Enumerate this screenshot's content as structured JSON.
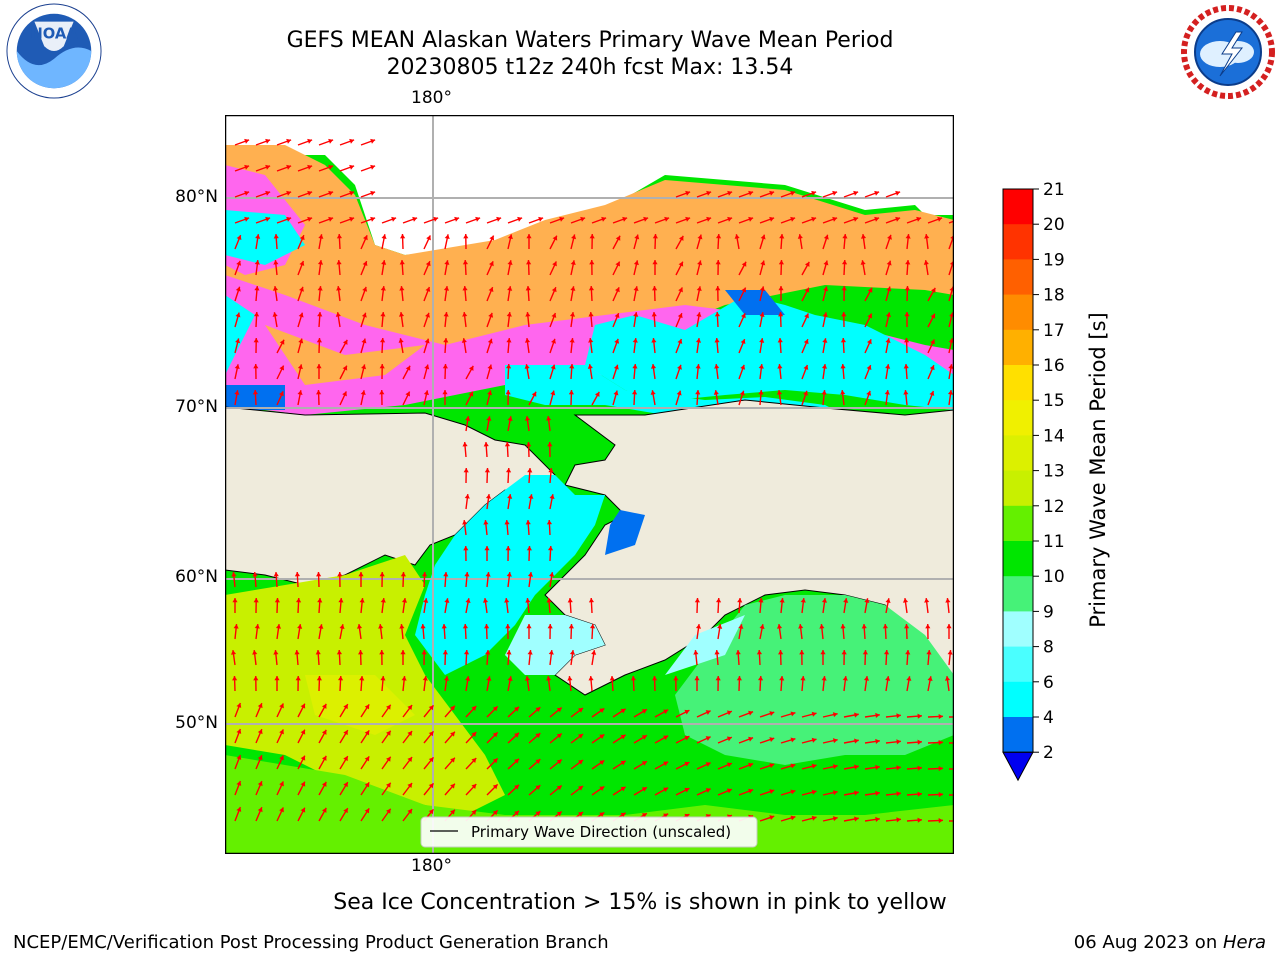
{
  "title": {
    "line1": "GEFS MEAN Alaskan Waters Primary Wave Mean Period",
    "line2": "20230805 t12z 240h fcst   Max: 13.54"
  },
  "map": {
    "lon_label_top": "180°",
    "lon_label_bottom": "180°",
    "lat_labels": [
      "80°N",
      "70°N",
      "60°N",
      "50°N"
    ],
    "legend": "Primary Wave Direction (unscaled)",
    "arrow_color": "#ff0000",
    "land_color": "#efebdc",
    "ocean_colors": {
      "low_period": "#00ffff",
      "mid_period": "#00e600",
      "high_period": "#c8f000",
      "ice_pink": "#ff66ee",
      "ice_orange": "#ffb050"
    }
  },
  "colorbar": {
    "label": "Primary Wave Mean Period [s]",
    "ticks": [
      "21",
      "20",
      "19",
      "18",
      "17",
      "16",
      "15",
      "14",
      "13",
      "12",
      "11",
      "10",
      "9",
      "8",
      "6",
      "4",
      "2"
    ],
    "colors": [
      "#ff0000",
      "#ff3300",
      "#ff6000",
      "#ff8c00",
      "#ffb000",
      "#ffe000",
      "#f0f000",
      "#dcf000",
      "#c8f000",
      "#64f000",
      "#00e600",
      "#46f278",
      "#a0ffff",
      "#4affff",
      "#00ffff",
      "#0070f0"
    ],
    "extend_color": "#0000f0"
  },
  "footnote": "Sea Ice Concentration > 15% is shown in pink to yellow",
  "footer": {
    "left": "NCEP/EMC/Verification Post Processing Product Generation Branch",
    "right_date": "06 Aug 2023 on ",
    "right_host": "Hera"
  },
  "logos": {
    "noaa": "NOAA",
    "noaa_ring": "NATIONAL OCEANIC AND ATMOSPHERIC ADMINISTRATION · U.S. DEPARTMENT OF COMMERCE",
    "nws_ring": "NATIONAL WEATHER SERVICE"
  }
}
